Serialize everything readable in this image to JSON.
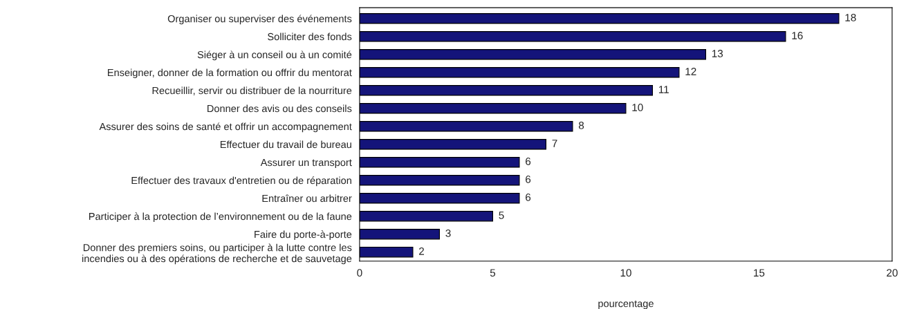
{
  "chart_data": {
    "type": "bar",
    "orientation": "horizontal",
    "xlabel": "pourcentage",
    "categories": [
      "Organiser ou superviser des événements",
      "Solliciter des fonds",
      "Siéger à un conseil ou à un comité",
      "Enseigner, donner de la formation ou offrir du mentorat",
      "Recueillir, servir ou distribuer de la nourriture",
      "Donner des avis ou des conseils",
      "Assurer des soins de santé et offrir un accompagnement",
      "Effectuer du travail de bureau",
      "Assurer un transport",
      "Effectuer des travaux d'entretien ou de réparation",
      "Entraîner ou arbitrer",
      "Participer à la protection de l’environnement ou de la faune",
      "Faire du porte-à-porte",
      "Donner des premiers soins, ou participer à la lutte contre les\nincendies ou à des opérations de recherche et de sauvetage"
    ],
    "values": [
      18,
      16,
      13,
      12,
      11,
      10,
      8,
      7,
      6,
      6,
      6,
      5,
      3,
      2
    ],
    "color": "#14147a",
    "xlim": [
      0,
      20
    ],
    "xticks": [
      0,
      5,
      10,
      15,
      20
    ],
    "data_labels": true,
    "grid": false,
    "legend": false
  }
}
